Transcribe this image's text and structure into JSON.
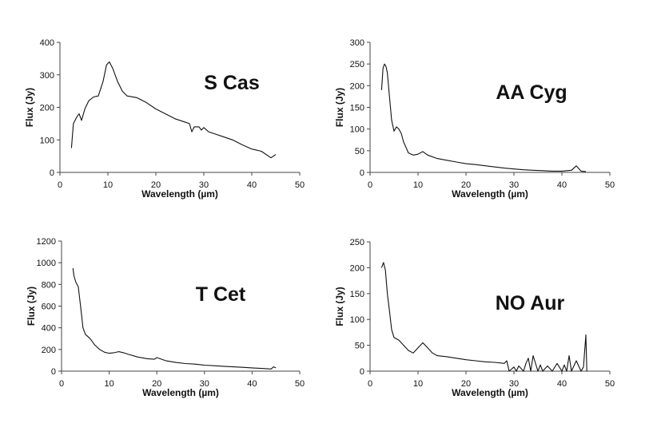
{
  "chart_data": [
    {
      "type": "line",
      "title": "S Cas",
      "xlabel": "Wavelength (µm)",
      "ylabel": "Flux (Jy)",
      "xlim": [
        0,
        50
      ],
      "ylim": [
        0,
        400
      ],
      "xticks": [
        0,
        10,
        20,
        30,
        40,
        50
      ],
      "yticks": [
        0,
        100,
        200,
        300,
        400
      ],
      "grid": false,
      "series": [
        {
          "name": "S Cas",
          "x": [
            2.4,
            2.8,
            3.5,
            4.0,
            4.5,
            5.2,
            6.0,
            7.0,
            8.0,
            9.0,
            9.7,
            10.3,
            11.0,
            12.0,
            13.0,
            14.0,
            16.0,
            18.0,
            20.0,
            22.0,
            24.0,
            26.0,
            27.0,
            27.5,
            28.0,
            29.0,
            29.5,
            30.0,
            31.0,
            32.0,
            34.0,
            36.0,
            38.0,
            40.0,
            42.0,
            44.0,
            45.0
          ],
          "y": [
            75,
            150,
            170,
            180,
            160,
            195,
            220,
            232,
            235,
            280,
            330,
            340,
            320,
            280,
            250,
            235,
            230,
            215,
            195,
            180,
            165,
            155,
            150,
            125,
            140,
            140,
            130,
            138,
            125,
            120,
            110,
            100,
            85,
            72,
            65,
            45,
            55
          ]
        }
      ]
    },
    {
      "type": "line",
      "title": "AA Cyg",
      "xlabel": "Wavelength (µm)",
      "ylabel": "Flux (Jy)",
      "xlim": [
        0,
        50
      ],
      "ylim": [
        0,
        300
      ],
      "xticks": [
        0,
        10,
        20,
        30,
        40,
        50
      ],
      "yticks": [
        0,
        50,
        100,
        150,
        200,
        250,
        300
      ],
      "grid": false,
      "series": [
        {
          "name": "AA Cyg",
          "x": [
            2.4,
            2.7,
            3.0,
            3.3,
            3.6,
            4.0,
            4.5,
            5.0,
            5.5,
            6.0,
            6.5,
            7.0,
            8.0,
            9.0,
            10.0,
            11.0,
            12.0,
            14.0,
            16.0,
            18.0,
            20.0,
            22.0,
            25.0,
            28.0,
            30.0,
            32.0,
            34.0,
            36.0,
            38.0,
            40.0,
            42.0,
            43.0,
            44.0,
            45.0
          ],
          "y": [
            190,
            240,
            250,
            245,
            230,
            180,
            120,
            95,
            105,
            100,
            90,
            70,
            45,
            40,
            42,
            48,
            40,
            32,
            28,
            24,
            20,
            18,
            14,
            10,
            8,
            6,
            5,
            4,
            3,
            3,
            5,
            15,
            3,
            2
          ]
        }
      ]
    },
    {
      "type": "line",
      "title": "T Cet",
      "xlabel": "Wavelength (µm)",
      "ylabel": "Flux (Jy)",
      "xlim": [
        0,
        50
      ],
      "ylim": [
        0,
        1200
      ],
      "xticks": [
        0,
        10,
        20,
        30,
        40,
        50
      ],
      "yticks": [
        0,
        200,
        400,
        600,
        800,
        1000,
        1200
      ],
      "grid": false,
      "series": [
        {
          "name": "T Cet",
          "x": [
            2.4,
            2.6,
            3.0,
            3.5,
            4.0,
            4.5,
            5.0,
            6.0,
            7.0,
            8.0,
            9.0,
            10.0,
            11.0,
            12.0,
            13.0,
            14.0,
            16.0,
            18.0,
            19.5,
            20.0,
            21.0,
            22.0,
            24.0,
            26.0,
            28.0,
            30.0,
            32.0,
            34.0,
            36.0,
            38.0,
            40.0,
            42.0,
            44.0,
            44.5,
            45.0
          ],
          "y": [
            950,
            880,
            820,
            780,
            600,
            400,
            340,
            300,
            240,
            200,
            175,
            165,
            170,
            180,
            170,
            155,
            130,
            115,
            110,
            125,
            110,
            95,
            80,
            70,
            65,
            55,
            50,
            45,
            40,
            35,
            30,
            25,
            20,
            40,
            30
          ]
        }
      ]
    },
    {
      "type": "line",
      "title": "NO Aur",
      "xlabel": "Wavelength (µm)",
      "ylabel": "Flux (Jy)",
      "xlim": [
        0,
        50
      ],
      "ylim": [
        0,
        250
      ],
      "xticks": [
        0,
        10,
        20,
        30,
        40,
        50
      ],
      "yticks": [
        0,
        50,
        100,
        150,
        200,
        250
      ],
      "grid": false,
      "series": [
        {
          "name": "NO Aur",
          "x": [
            2.4,
            2.8,
            3.2,
            3.6,
            4.0,
            4.5,
            5.0,
            6.0,
            7.0,
            8.0,
            9.0,
            10.0,
            11.0,
            12.0,
            13.0,
            14.0,
            16.0,
            18.0,
            20.0,
            22.0,
            24.0,
            26.0,
            28.0,
            28.5,
            29.0,
            30.0,
            30.5,
            31.0,
            32.0,
            32.5,
            33.0,
            33.5,
            34.0,
            35.0,
            35.5,
            36.0,
            37.0,
            38.0,
            39.0,
            40.0,
            40.5,
            41.0,
            41.5,
            42.0,
            43.0,
            44.0,
            44.5,
            45.0,
            45.2
          ],
          "y": [
            200,
            210,
            195,
            150,
            120,
            80,
            65,
            60,
            50,
            40,
            35,
            45,
            55,
            45,
            35,
            30,
            28,
            25,
            22,
            20,
            18,
            17,
            15,
            20,
            0,
            8,
            0,
            10,
            0,
            15,
            25,
            0,
            30,
            0,
            12,
            0,
            10,
            0,
            15,
            0,
            12,
            0,
            30,
            0,
            20,
            0,
            8,
            70,
            0
          ]
        }
      ]
    }
  ]
}
